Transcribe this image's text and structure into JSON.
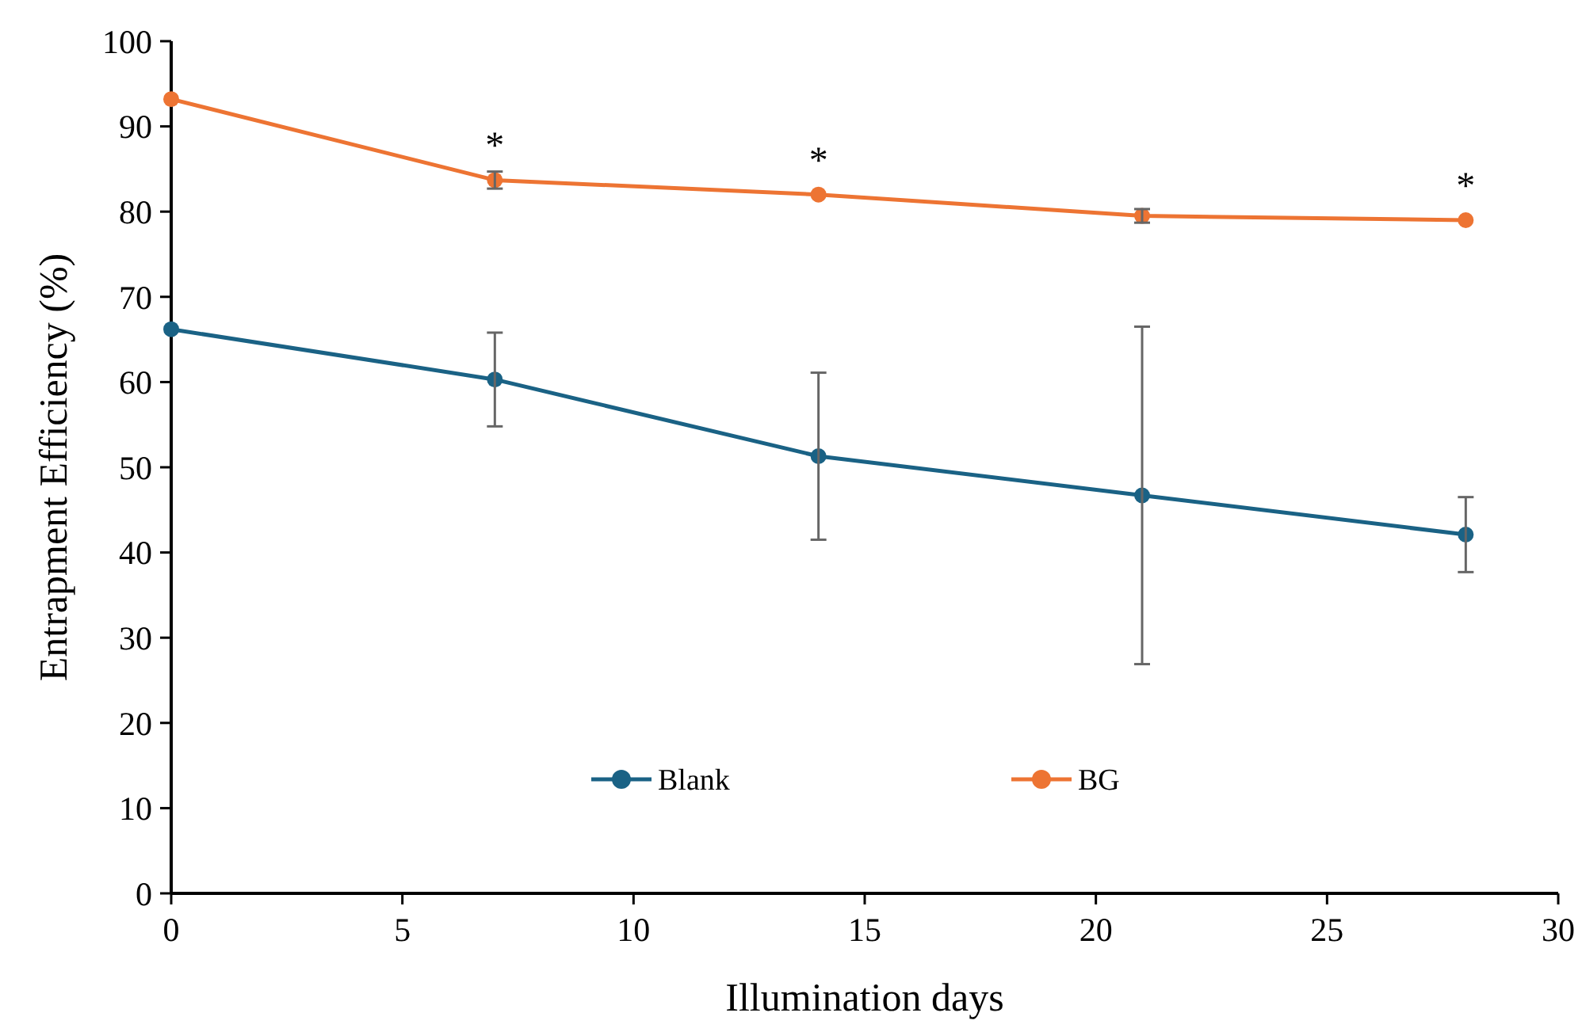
{
  "chart_data": {
    "type": "line",
    "xlabel": "Illumination days",
    "ylabel": "Entrapment Efficiency (%)",
    "x": [
      0,
      7,
      14,
      21,
      28
    ],
    "series": [
      {
        "name": "Blank",
        "color": "#1a6285",
        "values": [
          66.2,
          60.3,
          51.3,
          46.7,
          42.1
        ],
        "errors": [
          null,
          5.5,
          9.8,
          19.8,
          4.4
        ]
      },
      {
        "name": "BG",
        "color": "#ed7433",
        "values": [
          93.2,
          83.7,
          82.0,
          79.5,
          79.0
        ],
        "errors": [
          null,
          1.0,
          null,
          0.8,
          null
        ]
      }
    ],
    "xlim": [
      0,
      30
    ],
    "xticks": [
      0,
      5,
      10,
      15,
      20,
      25,
      30
    ],
    "ylim": [
      0,
      100
    ],
    "yticks": [
      0,
      10,
      20,
      30,
      40,
      50,
      60,
      70,
      80,
      90,
      100
    ],
    "annotations": [
      {
        "text": "*",
        "x": 7,
        "y": 83.7
      },
      {
        "text": "*",
        "x": 14,
        "y": 82.0
      },
      {
        "text": "*",
        "x": 28,
        "y": 79.0
      }
    ],
    "legend": "bottom",
    "marker": "circle",
    "line_style": "solid",
    "grid": false
  }
}
